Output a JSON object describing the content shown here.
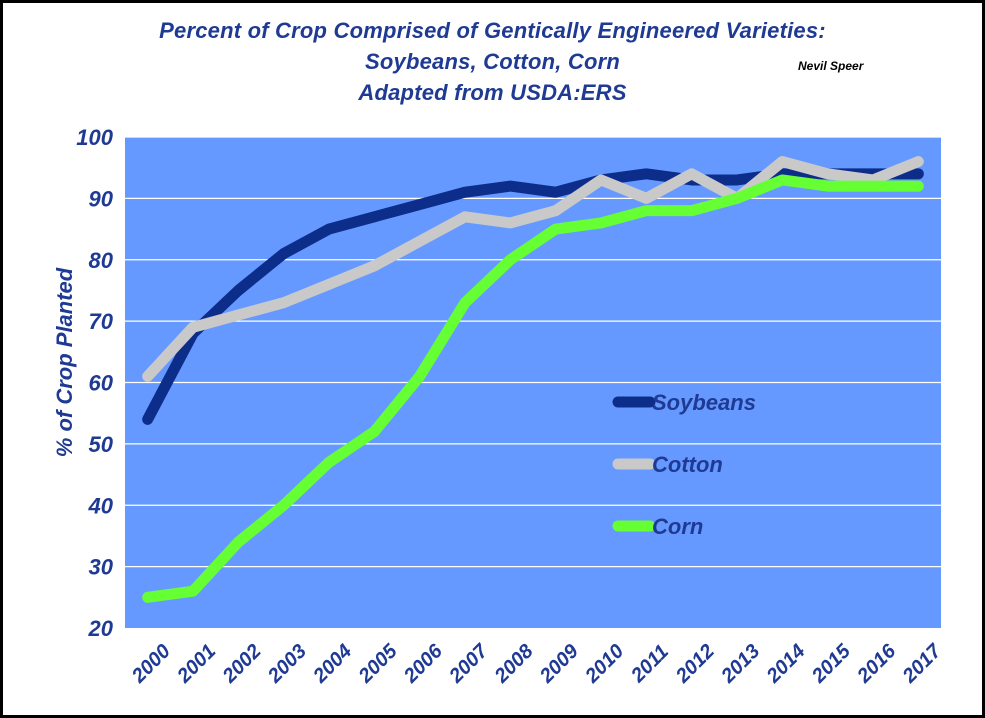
{
  "chart_data": {
    "type": "line",
    "title_lines": [
      "Percent of Crop Comprised of Gentically Engineered Varieties:",
      "Soybeans, Cotton, Corn",
      "Adapted from USDA:ERS"
    ],
    "author": "Nevil Speer",
    "ylabel": "% of Crop Planted",
    "xlabel": "",
    "ylim": [
      20,
      100
    ],
    "yticks": [
      20,
      30,
      40,
      50,
      60,
      70,
      80,
      90,
      100
    ],
    "grid": true,
    "legend_position": "right",
    "categories": [
      "2000",
      "2001",
      "2002",
      "2003",
      "2004",
      "2005",
      "2006",
      "2007",
      "2008",
      "2009",
      "2010",
      "2011",
      "2012",
      "2013",
      "2014",
      "2015",
      "2016",
      "2017"
    ],
    "series": [
      {
        "name": "Soybeans",
        "color": "#0d2d8a",
        "values": [
          54,
          68,
          75,
          81,
          85,
          87,
          89,
          91,
          92,
          91,
          93,
          94,
          93,
          93,
          94,
          94,
          94,
          94
        ]
      },
      {
        "name": "Cotton",
        "color": "#c9c9c9",
        "values": [
          61,
          69,
          71,
          73,
          76,
          79,
          83,
          87,
          86,
          88,
          93,
          90,
          94,
          90,
          96,
          94,
          93,
          96
        ]
      },
      {
        "name": "Corn",
        "color": "#66ff33",
        "values": [
          25,
          26,
          34,
          40,
          47,
          52,
          61,
          73,
          80,
          85,
          86,
          88,
          88,
          90,
          93,
          92,
          92,
          92
        ]
      }
    ]
  }
}
